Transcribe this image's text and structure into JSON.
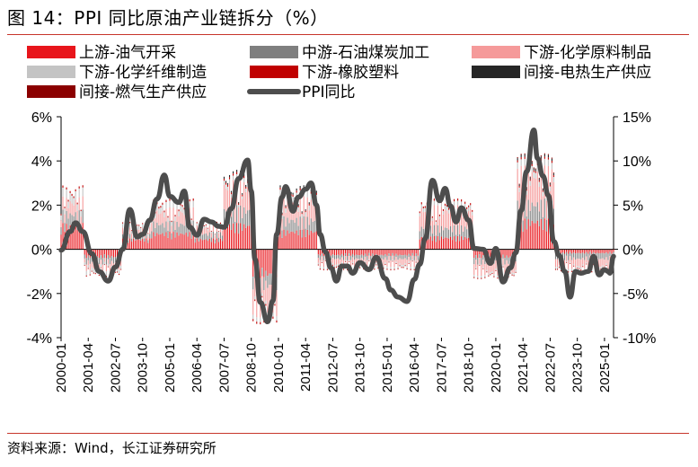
{
  "title": "图 14：PPI 同比原油产业链拆分（%）",
  "source": "资料来源：Wind，长江证券研究所",
  "colors": {
    "upstream_oil_gas": "#e8151b",
    "midstream_petroleum_coal": "#7f7f7f",
    "downstream_chem_materials": "#f59a9a",
    "downstream_chem_fiber": "#c4c4c4",
    "downstream_rubber_plastic": "#c00000",
    "indirect_heat_power": "#262626",
    "indirect_gas_supply": "#8b0000",
    "ppi_line": "#4d4d4d",
    "rule": "#c7352b"
  },
  "chart_data": {
    "type": "bar",
    "stacked": true,
    "title": "PPI 同比原油产业链拆分（%）",
    "legend": [
      {
        "key": "upstream_oil_gas",
        "label": "上游-油气开采",
        "kind": "bar"
      },
      {
        "key": "midstream_petroleum_coal",
        "label": "中游-石油煤炭加工",
        "kind": "bar"
      },
      {
        "key": "downstream_chem_materials",
        "label": "下游-化学原料制品",
        "kind": "bar"
      },
      {
        "key": "downstream_chem_fiber",
        "label": "下游-化学纤维制造",
        "kind": "bar"
      },
      {
        "key": "downstream_rubber_plastic",
        "label": "下游-橡胶塑料",
        "kind": "bar"
      },
      {
        "key": "indirect_heat_power",
        "label": "间接-电热生产供应",
        "kind": "bar"
      },
      {
        "key": "indirect_gas_supply",
        "label": "间接-燃气生产供应",
        "kind": "bar"
      },
      {
        "key": "ppi_line",
        "label": "PPI同比",
        "kind": "line"
      }
    ],
    "left_axis": {
      "min": -4,
      "max": 6,
      "step": 2,
      "ticks": [
        "-4%",
        "-2%",
        "0%",
        "2%",
        "4%",
        "6%"
      ],
      "unit": "%"
    },
    "right_axis": {
      "min": -10,
      "max": 15,
      "step": 5,
      "ticks": [
        "-10%",
        "-5%",
        "0%",
        "5%",
        "10%",
        "15%"
      ],
      "unit": "%"
    },
    "x_ticks": [
      "2000-01",
      "2001-04",
      "2002-07",
      "2003-10",
      "2005-01",
      "2006-04",
      "2007-07",
      "2008-10",
      "2010-01",
      "2011-04",
      "2012-07",
      "2013-10",
      "2015-01",
      "2016-04",
      "2017-07",
      "2018-10",
      "2020-01",
      "2021-04",
      "2022-07",
      "2023-10",
      "2025-01"
    ],
    "x_range": [
      "2000-01",
      "2025-06"
    ],
    "ppi_series_right_axis": [
      [
        "2000-01",
        -0.1
      ],
      [
        "2000-06",
        2.0
      ],
      [
        "2000-09",
        3.0
      ],
      [
        "2001-01",
        2.0
      ],
      [
        "2001-06",
        -0.5
      ],
      [
        "2001-10",
        -2.5
      ],
      [
        "2002-03",
        -3.6
      ],
      [
        "2002-07",
        -2.0
      ],
      [
        "2002-11",
        0.0
      ],
      [
        "2003-03",
        4.5
      ],
      [
        "2003-07",
        1.4
      ],
      [
        "2003-10",
        1.7
      ],
      [
        "2004-02",
        3.3
      ],
      [
        "2004-06",
        5.7
      ],
      [
        "2004-10",
        8.4
      ],
      [
        "2005-01",
        6.0
      ],
      [
        "2005-06",
        5.3
      ],
      [
        "2005-09",
        6.6
      ],
      [
        "2005-12",
        2.5
      ],
      [
        "2006-04",
        1.6
      ],
      [
        "2006-08",
        3.4
      ],
      [
        "2006-12",
        3.1
      ],
      [
        "2007-04",
        2.6
      ],
      [
        "2007-07",
        2.5
      ],
      [
        "2007-11",
        4.6
      ],
      [
        "2008-03",
        8.0
      ],
      [
        "2008-08",
        10.1
      ],
      [
        "2008-10",
        6.6
      ],
      [
        "2008-12",
        -1.1
      ],
      [
        "2009-03",
        -6.0
      ],
      [
        "2009-07",
        -8.2
      ],
      [
        "2009-10",
        -5.8
      ],
      [
        "2009-12",
        1.7
      ],
      [
        "2010-03",
        5.9
      ],
      [
        "2010-05",
        7.1
      ],
      [
        "2010-09",
        4.3
      ],
      [
        "2010-12",
        5.9
      ],
      [
        "2011-04",
        6.8
      ],
      [
        "2011-07",
        7.5
      ],
      [
        "2011-10",
        5.0
      ],
      [
        "2011-12",
        1.7
      ],
      [
        "2012-03",
        -0.3
      ],
      [
        "2012-06",
        -2.1
      ],
      [
        "2012-09",
        -3.6
      ],
      [
        "2012-12",
        -1.9
      ],
      [
        "2013-03",
        -1.9
      ],
      [
        "2013-06",
        -2.7
      ],
      [
        "2013-10",
        -1.5
      ],
      [
        "2014-03",
        -2.3
      ],
      [
        "2014-07",
        -0.9
      ],
      [
        "2014-12",
        -3.3
      ],
      [
        "2015-03",
        -4.6
      ],
      [
        "2015-07",
        -5.4
      ],
      [
        "2015-12",
        -5.9
      ],
      [
        "2016-04",
        -3.4
      ],
      [
        "2016-07",
        -1.7
      ],
      [
        "2016-10",
        1.2
      ],
      [
        "2017-02",
        7.8
      ],
      [
        "2017-06",
        5.5
      ],
      [
        "2017-09",
        6.9
      ],
      [
        "2017-12",
        4.9
      ],
      [
        "2018-03",
        3.1
      ],
      [
        "2018-06",
        4.7
      ],
      [
        "2018-10",
        3.3
      ],
      [
        "2019-01",
        0.1
      ],
      [
        "2019-06",
        0.0
      ],
      [
        "2019-10",
        -1.6
      ],
      [
        "2020-01",
        0.1
      ],
      [
        "2020-05",
        -3.7
      ],
      [
        "2020-09",
        -2.1
      ],
      [
        "2020-12",
        -0.4
      ],
      [
        "2021-03",
        4.4
      ],
      [
        "2021-06",
        8.8
      ],
      [
        "2021-10",
        13.5
      ],
      [
        "2021-12",
        10.3
      ],
      [
        "2022-03",
        8.3
      ],
      [
        "2022-06",
        6.1
      ],
      [
        "2022-09",
        0.9
      ],
      [
        "2022-12",
        -0.7
      ],
      [
        "2023-03",
        -2.5
      ],
      [
        "2023-06",
        -5.4
      ],
      [
        "2023-09",
        -2.5
      ],
      [
        "2023-12",
        -2.7
      ],
      [
        "2024-04",
        -2.5
      ],
      [
        "2024-07",
        -0.8
      ],
      [
        "2024-10",
        -2.9
      ],
      [
        "2025-01",
        -2.3
      ],
      [
        "2025-03",
        -2.5
      ],
      [
        "2025-04",
        -2.7
      ],
      [
        "2025-06",
        -0.8
      ]
    ],
    "contribution_segments_left_axis": [
      {
        "from": "2000-01",
        "to": "2001-01",
        "upstream_oil_gas": 1.2,
        "midstream_petroleum_coal": 0.6,
        "downstream_chem_materials": 0.6,
        "downstream_chem_fiber": 0.4,
        "downstream_rubber_plastic": 0.1,
        "indirect_heat_power": 0.0,
        "indirect_gas_supply": 0.0
      },
      {
        "from": "2001-02",
        "to": "2002-10",
        "upstream_oil_gas": -0.4,
        "midstream_petroleum_coal": -0.3,
        "downstream_chem_materials": -0.3,
        "downstream_chem_fiber": -0.2,
        "downstream_rubber_plastic": -0.05,
        "indirect_heat_power": 0.0,
        "indirect_gas_supply": 0.0
      },
      {
        "from": "2002-11",
        "to": "2004-02",
        "upstream_oil_gas": 0.5,
        "midstream_petroleum_coal": 0.2,
        "downstream_chem_materials": 0.3,
        "downstream_chem_fiber": 0.2,
        "downstream_rubber_plastic": 0.05,
        "indirect_heat_power": 0.0,
        "indirect_gas_supply": 0.0
      },
      {
        "from": "2004-03",
        "to": "2006-02",
        "upstream_oil_gas": 0.8,
        "midstream_petroleum_coal": 0.5,
        "downstream_chem_materials": 0.6,
        "downstream_chem_fiber": 0.3,
        "downstream_rubber_plastic": 0.1,
        "indirect_heat_power": 0.0,
        "indirect_gas_supply": 0.0
      },
      {
        "from": "2006-03",
        "to": "2007-06",
        "upstream_oil_gas": 0.5,
        "midstream_petroleum_coal": 0.3,
        "downstream_chem_materials": 0.3,
        "downstream_chem_fiber": 0.1,
        "downstream_rubber_plastic": 0.05,
        "indirect_heat_power": 0.0,
        "indirect_gas_supply": 0.0
      },
      {
        "from": "2007-07",
        "to": "2008-10",
        "upstream_oil_gas": 1.2,
        "midstream_petroleum_coal": 0.8,
        "downstream_chem_materials": 1.2,
        "downstream_chem_fiber": 0.2,
        "downstream_rubber_plastic": 0.1,
        "indirect_heat_power": 0.1,
        "indirect_gas_supply": 0.0
      },
      {
        "from": "2008-11",
        "to": "2009-12",
        "upstream_oil_gas": -1.3,
        "midstream_petroleum_coal": -0.6,
        "downstream_chem_materials": -1.2,
        "downstream_chem_fiber": -0.2,
        "downstream_rubber_plastic": -0.1,
        "indirect_heat_power": 0.0,
        "indirect_gas_supply": 0.0
      },
      {
        "from": "2010-01",
        "to": "2011-10",
        "upstream_oil_gas": 0.9,
        "midstream_petroleum_coal": 0.6,
        "downstream_chem_materials": 0.9,
        "downstream_chem_fiber": 0.3,
        "downstream_rubber_plastic": 0.1,
        "indirect_heat_power": 0.1,
        "indirect_gas_supply": 0.0
      },
      {
        "from": "2011-11",
        "to": "2016-06",
        "upstream_oil_gas": -0.3,
        "midstream_petroleum_coal": -0.2,
        "downstream_chem_materials": -0.3,
        "downstream_chem_fiber": -0.1,
        "downstream_rubber_plastic": -0.05,
        "indirect_heat_power": 0.0,
        "indirect_gas_supply": 0.0
      },
      {
        "from": "2016-07",
        "to": "2018-12",
        "upstream_oil_gas": 0.6,
        "midstream_petroleum_coal": 0.5,
        "downstream_chem_materials": 0.9,
        "downstream_chem_fiber": 0.2,
        "downstream_rubber_plastic": 0.1,
        "indirect_heat_power": 0.0,
        "indirect_gas_supply": 0.0
      },
      {
        "from": "2019-01",
        "to": "2020-12",
        "upstream_oil_gas": -0.4,
        "midstream_petroleum_coal": -0.3,
        "downstream_chem_materials": -0.5,
        "downstream_chem_fiber": -0.1,
        "downstream_rubber_plastic": -0.05,
        "indirect_heat_power": 0.0,
        "indirect_gas_supply": 0.0
      },
      {
        "from": "2021-01",
        "to": "2022-09",
        "upstream_oil_gas": 1.4,
        "midstream_petroleum_coal": 0.9,
        "downstream_chem_materials": 1.5,
        "downstream_chem_fiber": 0.3,
        "downstream_rubber_plastic": 0.1,
        "indirect_heat_power": 0.1,
        "indirect_gas_supply": 0.05
      },
      {
        "from": "2022-10",
        "to": "2025-06",
        "upstream_oil_gas": -0.2,
        "midstream_petroleum_coal": -0.3,
        "downstream_chem_materials": -0.4,
        "downstream_chem_fiber": -0.1,
        "downstream_rubber_plastic": -0.05,
        "indirect_heat_power": 0.0,
        "indirect_gas_supply": 0.0
      }
    ]
  }
}
